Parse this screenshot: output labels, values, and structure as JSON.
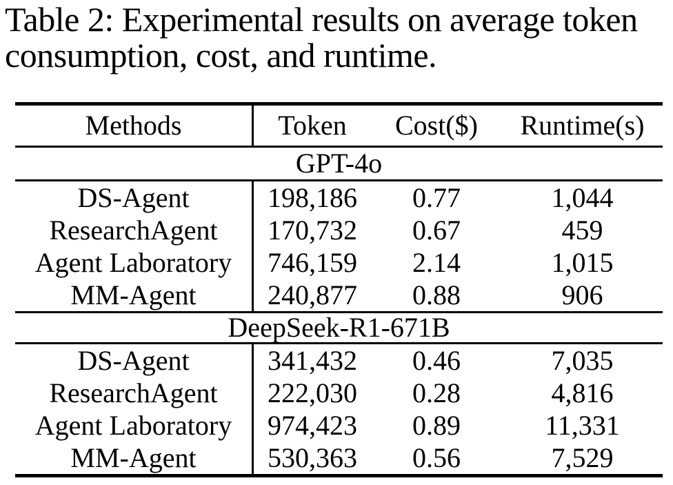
{
  "caption": {
    "lines": [
      "Table 2: Experimental results on average token",
      "consumption, cost, and runtime."
    ]
  },
  "table": {
    "columns": [
      "Methods",
      "Token",
      "Cost($)",
      "Runtime(s)"
    ],
    "sections": [
      {
        "title": "GPT-4o",
        "rows": [
          {
            "method": "DS-Agent",
            "token": "198,186",
            "cost": "0.77",
            "runtime": "1,044"
          },
          {
            "method": "ResearchAgent",
            "token": "170,732",
            "cost": "0.67",
            "runtime": "459"
          },
          {
            "method": "Agent Laboratory",
            "token": "746,159",
            "cost": "2.14",
            "runtime": "1,015"
          },
          {
            "method": "MM-Agent",
            "token": "240,877",
            "cost": "0.88",
            "runtime": "906"
          }
        ]
      },
      {
        "title": "DeepSeek-R1-671B",
        "rows": [
          {
            "method": "DS-Agent",
            "token": "341,432",
            "cost": "0.46",
            "runtime": "7,035"
          },
          {
            "method": "ResearchAgent",
            "token": "222,030",
            "cost": "0.28",
            "runtime": "4,816"
          },
          {
            "method": "Agent Laboratory",
            "token": "974,423",
            "cost": "0.89",
            "runtime": "11,331"
          },
          {
            "method": "MM-Agent",
            "token": "530,363",
            "cost": "0.56",
            "runtime": "7,529"
          }
        ]
      }
    ]
  },
  "colors": {
    "text": "#000000",
    "background": "#ffffff",
    "rule": "#000000"
  }
}
